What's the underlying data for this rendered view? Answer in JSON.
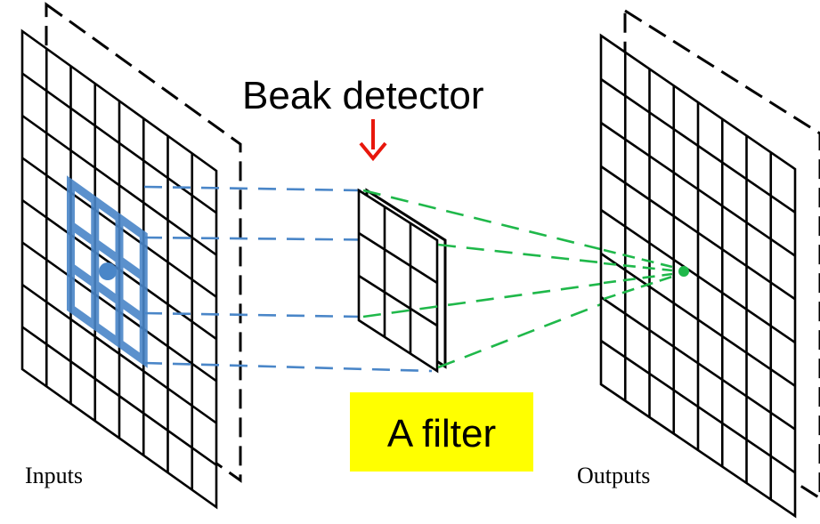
{
  "labels": {
    "inputs": "Inputs",
    "outputs": "Outputs",
    "filter": "A filter",
    "detector": "Beak detector"
  },
  "colors": {
    "grid": "#000000",
    "receptive_field": "#4a86c8",
    "input_projection": "#4a86c8",
    "output_projection": "#1fb84a",
    "arrow": "#e8170c",
    "filter_label_bg": "#ffff00",
    "background": "#ffffff"
  }
}
